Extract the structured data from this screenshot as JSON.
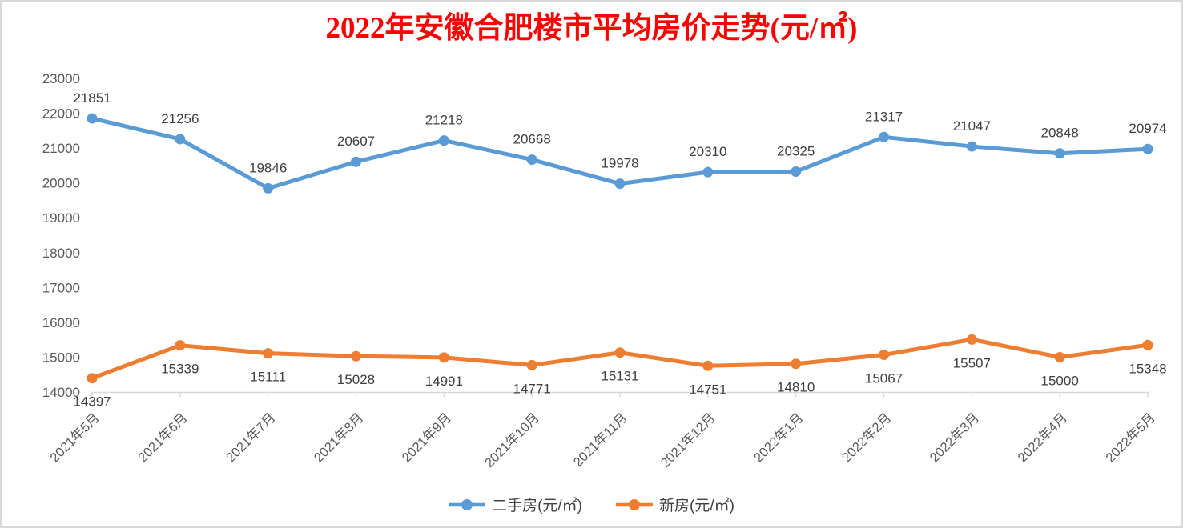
{
  "window": {
    "background": "#ffffff",
    "border_color": "#d9d9d9"
  },
  "chart_data": {
    "type": "line",
    "title": "2022年安徽合肥楼市平均房价走势(元/㎡)",
    "title_color": "#ff0000",
    "categories": [
      "2021年5月",
      "2021年6月",
      "2021年7月",
      "2021年8月",
      "2021年9月",
      "2021年10月",
      "2021年11月",
      "2021年12月",
      "2022年1月",
      "2022年2月",
      "2022年3月",
      "2022年4月",
      "2022年5月"
    ],
    "series": [
      {
        "name": "二手房(元/㎡)",
        "color": "#5b9bd5",
        "label_position": "above",
        "values": [
          21851,
          21256,
          19846,
          20607,
          21218,
          20668,
          19978,
          20310,
          20325,
          21317,
          21047,
          20848,
          20974
        ]
      },
      {
        "name": "新房(元/㎡)",
        "color": "#ed7d31",
        "label_position": "below",
        "values": [
          14397,
          15339,
          15111,
          15028,
          14991,
          14771,
          15131,
          14751,
          14810,
          15067,
          15507,
          15000,
          15348
        ]
      }
    ],
    "y_axis": {
      "min": 14000,
      "max": 23000,
      "step": 1000,
      "tick_labels": [
        "14000",
        "15000",
        "16000",
        "17000",
        "18000",
        "19000",
        "20000",
        "21000",
        "22000",
        "23000"
      ]
    },
    "grid": false,
    "data_labels": true,
    "legend_position": "bottom",
    "axis_color": "#d9d9d9",
    "data_label_color": "#404040",
    "tick_label_color": "#595959"
  }
}
